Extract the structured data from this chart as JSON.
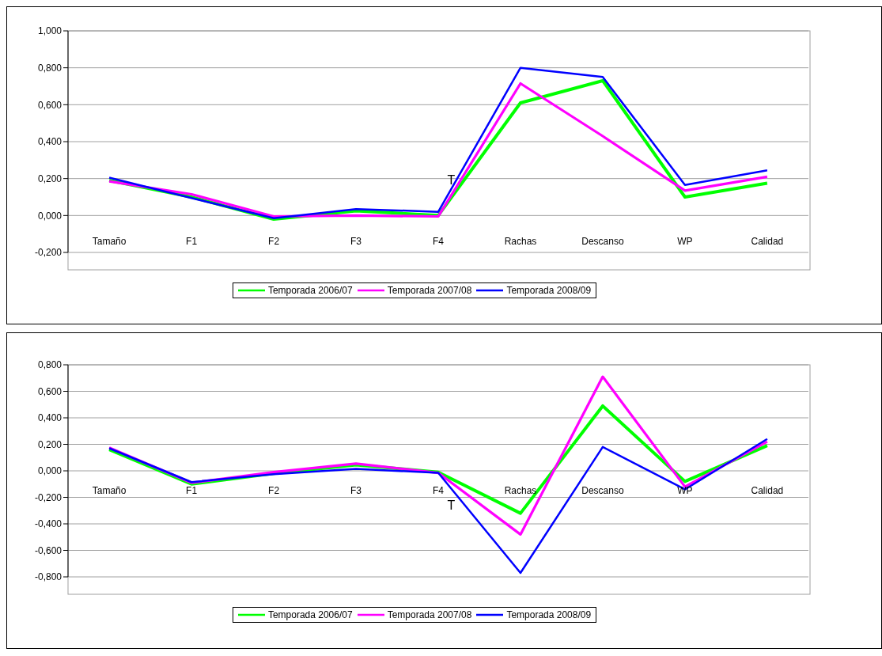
{
  "chart_data": [
    {
      "type": "line",
      "categories": [
        "Tamaño",
        "F1",
        "F2",
        "F3",
        "F4",
        "Rachas",
        "Descanso",
        "WP",
        "Calidad"
      ],
      "series": [
        {
          "name": "Temporada 2006/07",
          "color": "#00ff00",
          "values": [
            0.19,
            0.1,
            -0.02,
            0.025,
            0.0,
            0.61,
            0.73,
            0.1,
            0.175
          ]
        },
        {
          "name": "Temporada 2007/08",
          "color": "#ff00ff",
          "values": [
            0.185,
            0.115,
            -0.005,
            0.0,
            -0.005,
            0.715,
            0.43,
            0.135,
            0.21
          ]
        },
        {
          "name": "Temporada 2008/09",
          "color": "#0000ff",
          "values": [
            0.205,
            0.095,
            -0.015,
            0.035,
            0.02,
            0.8,
            0.75,
            0.165,
            0.245
          ]
        }
      ],
      "ylim": [
        -0.2,
        1.0
      ],
      "yticks": [
        {
          "value": -0.2,
          "label": "-0,200"
        },
        {
          "value": 0,
          "label": "0,000"
        },
        {
          "value": 0.2,
          "label": "0,200"
        },
        {
          "value": 0.4,
          "label": "0,400"
        },
        {
          "value": 0.6,
          "label": "0,600"
        },
        {
          "value": 0.8,
          "label": "0,800"
        },
        {
          "value": 1.0,
          "label": "1,000"
        }
      ],
      "grid": "y",
      "legend": "bottom",
      "annotations": [
        "T"
      ]
    },
    {
      "type": "line",
      "categories": [
        "Tamaño",
        "F1",
        "F2",
        "F3",
        "F4",
        "Rachas",
        "Descanso",
        "WP",
        "Calidad"
      ],
      "series": [
        {
          "name": "Temporada 2006/07",
          "color": "#00ff00",
          "values": [
            0.16,
            -0.1,
            -0.02,
            0.045,
            -0.01,
            -0.32,
            0.49,
            -0.08,
            0.19
          ]
        },
        {
          "name": "Temporada 2007/08",
          "color": "#ff00ff",
          "values": [
            0.175,
            -0.09,
            -0.01,
            0.055,
            -0.015,
            -0.48,
            0.71,
            -0.12,
            0.22
          ]
        },
        {
          "name": "Temporada 2008/09",
          "color": "#0000ff",
          "values": [
            0.17,
            -0.085,
            -0.025,
            0.015,
            -0.015,
            -0.77,
            0.18,
            -0.14,
            0.24
          ]
        }
      ],
      "ylim": [
        -0.8,
        0.8
      ],
      "yticks": [
        {
          "value": -0.8,
          "label": "-0,800"
        },
        {
          "value": -0.6,
          "label": "-0,600"
        },
        {
          "value": -0.4,
          "label": "-0,400"
        },
        {
          "value": -0.2,
          "label": "-0,200"
        },
        {
          "value": 0,
          "label": "0,000"
        },
        {
          "value": 0.2,
          "label": "0,200"
        },
        {
          "value": 0.4,
          "label": "0,400"
        },
        {
          "value": 0.6,
          "label": "0,600"
        },
        {
          "value": 0.8,
          "label": "0,800"
        }
      ],
      "grid": "y",
      "legend": "bottom",
      "annotations": [
        "T"
      ]
    }
  ]
}
